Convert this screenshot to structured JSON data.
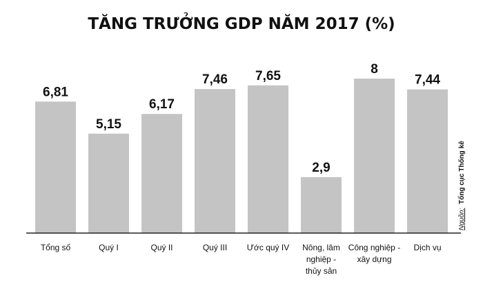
{
  "chart_data": {
    "type": "bar",
    "title": "TĂNG TRƯỞNG GDP NĂM 2017 (%)",
    "categories": [
      [
        "Tổng số"
      ],
      [
        "Quý I"
      ],
      [
        "Quý II"
      ],
      [
        "Quý III"
      ],
      [
        "Ước quý IV"
      ],
      [
        "Nông, lâm",
        "nghiệp -",
        "thủy sản"
      ],
      [
        "Công nghiệp -",
        "xây dựng"
      ],
      [
        "Dịch vụ"
      ]
    ],
    "values": [
      6.81,
      5.15,
      6.17,
      7.46,
      7.65,
      2.9,
      8,
      7.44
    ],
    "value_labels": [
      "6,81",
      "5,15",
      "6,17",
      "7,46",
      "7,65",
      "2,9",
      "8",
      "7,44"
    ],
    "ylim": [
      0,
      8.5
    ],
    "grid": false,
    "legend": "none",
    "source": {
      "prefix": "Nguồn:",
      "name": "Tổng cục Thống kê"
    },
    "colors": {
      "bar": "#c4c4c4",
      "axis": "#222222",
      "text": "#111111"
    }
  }
}
